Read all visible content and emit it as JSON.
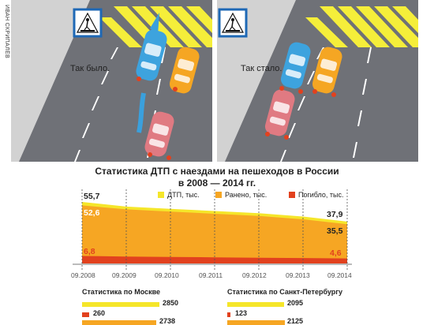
{
  "credit": "ИВАН СКРИПАЛЁВ",
  "scenes": {
    "before_label": "Так было.",
    "after_label": "Так стало."
  },
  "chart_title_line1": "Статистика ДТП с наездами на пешеходов в России",
  "chart_title_line2": "в 2008 — 2014 гг.",
  "colors": {
    "accidents": "#f5e62a",
    "injured": "#f6a623",
    "killed": "#e2411e",
    "gridline": "#555555"
  },
  "legend": {
    "accidents": "ДТП, тыс.",
    "injured": "Ранено, тыс.",
    "killed": "Погибло, тыс."
  },
  "chart_data": {
    "type": "area",
    "x": [
      "09.2008",
      "09.2009",
      "09.2010",
      "09.2011",
      "09.2012",
      "09.2013",
      "09.2014"
    ],
    "series": [
      {
        "name": "ДТП, тыс.",
        "values": [
          55.7,
          51.5,
          49.5,
          47.5,
          45.5,
          42.5,
          37.9
        ]
      },
      {
        "name": "Ранено, тыс.",
        "values": [
          52.6,
          49.0,
          47.0,
          45.0,
          43.0,
          40.0,
          35.5
        ]
      },
      {
        "name": "Погибло, тыс.",
        "values": [
          6.8,
          6.3,
          5.9,
          5.6,
          5.2,
          4.9,
          4.6
        ]
      }
    ],
    "start_labels": {
      "accidents": "55,7",
      "injured": "52,6",
      "killed": "6,8"
    },
    "end_labels": {
      "accidents": "37,9",
      "injured": "35,5",
      "killed": "4,6"
    },
    "ylim": [
      0,
      60
    ]
  },
  "moscow": {
    "title": "Статистика по Москве",
    "values": [
      2850,
      260,
      2738
    ],
    "labels": [
      "2850",
      "260",
      "2738"
    ]
  },
  "spb": {
    "title": "Статистика по Санкт-Петербургу",
    "values": [
      2095,
      123,
      2125
    ],
    "labels": [
      "2095",
      "123",
      "2125"
    ]
  }
}
